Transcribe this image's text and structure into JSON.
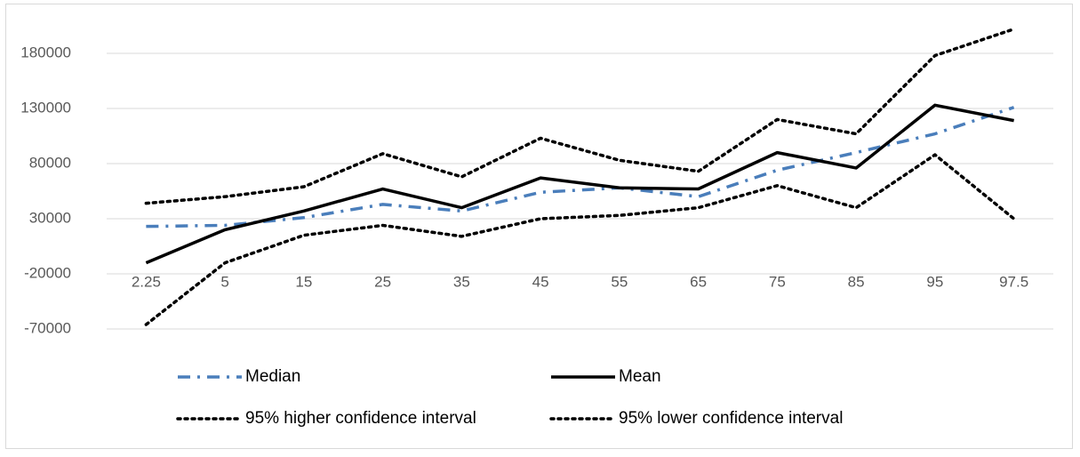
{
  "chart_data": {
    "type": "line",
    "categories": [
      "2.25",
      "5",
      "15",
      "25",
      "35",
      "45",
      "55",
      "65",
      "75",
      "85",
      "95",
      "97.5"
    ],
    "series": [
      {
        "name": "Median",
        "color": "#4a7ebb",
        "dash": "dashdot",
        "values": [
          23000,
          24000,
          31000,
          43000,
          37000,
          54000,
          58000,
          50000,
          74000,
          90000,
          107000,
          131000
        ]
      },
      {
        "name": "Mean",
        "color": "#000000",
        "dash": "solid",
        "values": [
          -10000,
          20000,
          37000,
          57000,
          40000,
          67000,
          58000,
          57000,
          90000,
          76000,
          133000,
          119000
        ]
      },
      {
        "name": "95% higher confidence interval",
        "color": "#000000",
        "dash": "dot",
        "values": [
          44000,
          50000,
          59000,
          89000,
          68000,
          103000,
          83000,
          73000,
          120000,
          107000,
          178000,
          202000
        ]
      },
      {
        "name": "95% lower confidence interval",
        "color": "#000000",
        "dash": "dot",
        "values": [
          -66000,
          -10000,
          15000,
          24000,
          14000,
          30000,
          33000,
          40000,
          60000,
          40000,
          88000,
          30000
        ]
      }
    ],
    "ylim": [
      -70000,
      205000
    ],
    "yticks": [
      -70000,
      -20000,
      30000,
      80000,
      130000,
      180000
    ],
    "xaxis_crosses": -20000,
    "grid": true,
    "legend": "bottom"
  }
}
